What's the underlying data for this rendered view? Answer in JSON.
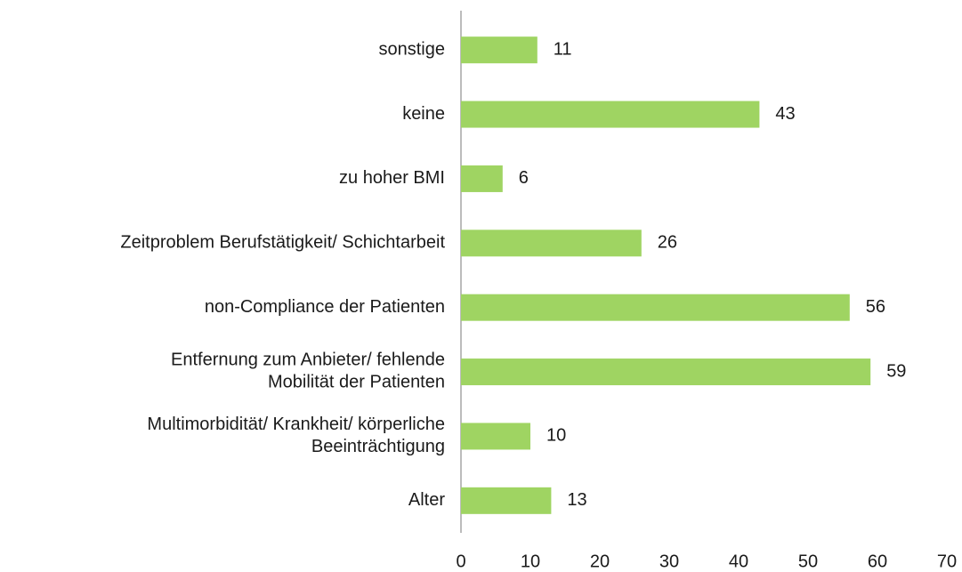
{
  "chart_data": {
    "type": "bar",
    "orientation": "horizontal",
    "categories": [
      "sonstige",
      "keine",
      "zu hoher BMI",
      "Zeitproblem Berufstätigkeit/ Schichtarbeit",
      "non-Compliance der Patienten",
      "Entfernung zum Anbieter/ fehlende\nMobilität der Patienten",
      "Multimorbidität/ Krankheit/ körperliche\nBeeinträchtigung",
      "Alter"
    ],
    "values": [
      11,
      43,
      6,
      26,
      56,
      59,
      10,
      13
    ],
    "color": "#9fd462",
    "xlim": [
      0,
      70
    ],
    "xticks": [
      0,
      10,
      20,
      30,
      40,
      50,
      60,
      70
    ],
    "grid": false
  }
}
